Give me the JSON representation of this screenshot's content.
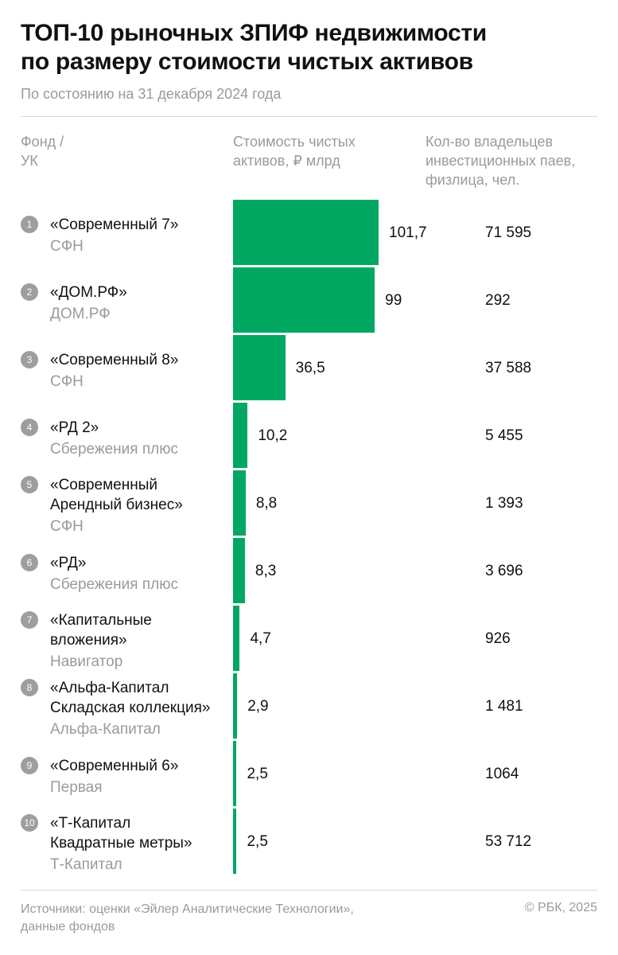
{
  "title_lines": [
    "ТОП-10 рыночных ЗПИФ недвижимости",
    "по размеру стоимости чистых активов"
  ],
  "subtitle": "По состоянию на 31 декабря 2024 года",
  "headers": {
    "fund": [
      "Фонд /",
      "УК"
    ],
    "nav": [
      "Стоимость чистых",
      "активов, ₽ млрд"
    ],
    "owners": [
      "Кол-во владельцев",
      "инвестиционных паев,",
      "физлица, чел."
    ]
  },
  "footer": {
    "source_lines": [
      "Источники: оценки «Эйлер Аналитические Технологии»,",
      "данные фондов"
    ],
    "copyright": "© РБК, 2025"
  },
  "colors": {
    "bar": "#00a862",
    "badge": "#9e9e9e",
    "muted": "#9a9a9a"
  },
  "chart_data": {
    "type": "bar",
    "orientation": "horizontal",
    "title": "ТОП-10 рыночных ЗПИФ недвижимости по размеру стоимости чистых активов",
    "xlabel": "Стоимость чистых активов, ₽ млрд",
    "xlim": [
      0,
      101.7
    ],
    "categories": [
      "«Современный 7»",
      "«ДОМ.РФ»",
      "«Современный 8»",
      "«РД 2»",
      "«Современный Арендный бизнес»",
      "«РД»",
      "«Капитальные вложения»",
      "«Альфа-Капитал Складская коллекция»",
      "«Современный 6»",
      "«Т-Капитал Квадратные метры»"
    ],
    "values": [
      101.7,
      99,
      36.5,
      10.2,
      8.8,
      8.3,
      4.7,
      2.9,
      2.5,
      2.5
    ],
    "rows": [
      {
        "rank": "1",
        "fund_lines": [
          "«Современный 7»"
        ],
        "manager": "СФН",
        "nav": 101.7,
        "nav_label": "101,7",
        "owners": "71 595"
      },
      {
        "rank": "2",
        "fund_lines": [
          "«ДОМ.РФ»"
        ],
        "manager": "ДОМ.РФ",
        "nav": 99,
        "nav_label": "99",
        "owners": "292"
      },
      {
        "rank": "3",
        "fund_lines": [
          "«Современный 8»"
        ],
        "manager": "СФН",
        "nav": 36.5,
        "nav_label": "36,5",
        "owners": "37 588"
      },
      {
        "rank": "4",
        "fund_lines": [
          "«РД 2»"
        ],
        "manager": "Сбережения плюс",
        "nav": 10.2,
        "nav_label": "10,2",
        "owners": "5 455"
      },
      {
        "rank": "5",
        "fund_lines": [
          "«Современный",
          "Арендный бизнес»"
        ],
        "manager": "СФН",
        "nav": 8.8,
        "nav_label": "8,8",
        "owners": "1 393"
      },
      {
        "rank": "6",
        "fund_lines": [
          "«РД»"
        ],
        "manager": "Сбережения плюс",
        "nav": 8.3,
        "nav_label": "8,3",
        "owners": "3 696"
      },
      {
        "rank": "7",
        "fund_lines": [
          "«Капитальные",
          "вложения»"
        ],
        "manager": "Навигатор",
        "nav": 4.7,
        "nav_label": "4,7",
        "owners": "926"
      },
      {
        "rank": "8",
        "fund_lines": [
          "«Альфа-Капитал",
          "Складская коллекция»"
        ],
        "manager": "Альфа-Капитал",
        "nav": 2.9,
        "nav_label": "2,9",
        "owners": "1 481"
      },
      {
        "rank": "9",
        "fund_lines": [
          "«Современный 6»"
        ],
        "manager": "Первая",
        "nav": 2.5,
        "nav_label": "2,5",
        "owners": "1064"
      },
      {
        "rank": "10",
        "fund_lines": [
          "«Т-Капитал",
          "Квадратные метры»"
        ],
        "manager": "Т-Капитал",
        "nav": 2.5,
        "nav_label": "2,5",
        "owners": "53 712"
      }
    ]
  }
}
